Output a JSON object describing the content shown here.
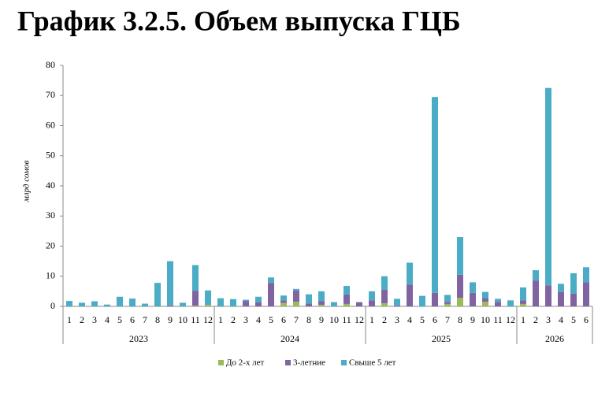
{
  "chart_data": {
    "type": "stacked_bar",
    "title": "График 3.2.5. Объем выпуска ГЦБ",
    "y_label": "млрд сомов",
    "groups": [
      {
        "name": "2023",
        "categories": [
          "1",
          "2",
          "3",
          "4",
          "5",
          "6",
          "7",
          "8",
          "9",
          "10",
          "11",
          "12"
        ]
      },
      {
        "name": "2024",
        "categories": [
          "1",
          "2",
          "3",
          "4",
          "5",
          "6",
          "7",
          "8",
          "9",
          "10",
          "11",
          "12"
        ]
      },
      {
        "name": "2025",
        "categories": [
          "1",
          "2",
          "3",
          "4",
          "5",
          "6",
          "7",
          "8",
          "9",
          "10",
          "11",
          "12"
        ]
      },
      {
        "name": "2026",
        "categories": [
          "1",
          "2",
          "3",
          "4",
          "5",
          "6"
        ]
      }
    ],
    "series": [
      {
        "name": "До 2-х лет",
        "color": "#9bbb59",
        "values": [
          0,
          0,
          0,
          0,
          0,
          0,
          0,
          0,
          0,
          0,
          0.2,
          0.5,
          0,
          0,
          0,
          0,
          0,
          1.2,
          1.5,
          0,
          0.5,
          0,
          0.8,
          0,
          0,
          1,
          0,
          0,
          0,
          0,
          0.8,
          2.8,
          0,
          1.5,
          0,
          0,
          0.8,
          0,
          0,
          0,
          0,
          0
        ]
      },
      {
        "name": "3-летние",
        "color": "#8064a2",
        "values": [
          0,
          0,
          0,
          0,
          0,
          0,
          0,
          0,
          0.3,
          0,
          5,
          0,
          0,
          0,
          1.8,
          1.3,
          7.8,
          0.8,
          3.8,
          1,
          1.2,
          0,
          3.2,
          1.4,
          2,
          4.5,
          0.3,
          7.2,
          0,
          4.5,
          0.7,
          7.7,
          4.5,
          1.3,
          1.5,
          0,
          1.2,
          8.5,
          7,
          4.8,
          4.2,
          8
        ]
      },
      {
        "name": "Свыше 5 лет",
        "color": "#4bacc6",
        "values": [
          1.8,
          1.2,
          1.7,
          0.6,
          3.2,
          2.6,
          0.9,
          7.8,
          14.7,
          1.2,
          8.5,
          4.8,
          2.7,
          2.4,
          0.4,
          1.9,
          1.8,
          1.6,
          0.5,
          3,
          3.3,
          1.4,
          2.8,
          0,
          3,
          4.5,
          2.2,
          7.3,
          3.5,
          65,
          2.3,
          12.5,
          3.5,
          2,
          1,
          2,
          4.3,
          3.5,
          65.5,
          2.7,
          6.8,
          5
        ]
      }
    ],
    "ylim": [
      0,
      80
    ],
    "yticks": [
      0,
      10,
      20,
      30,
      40,
      50,
      60,
      70,
      80
    ]
  }
}
